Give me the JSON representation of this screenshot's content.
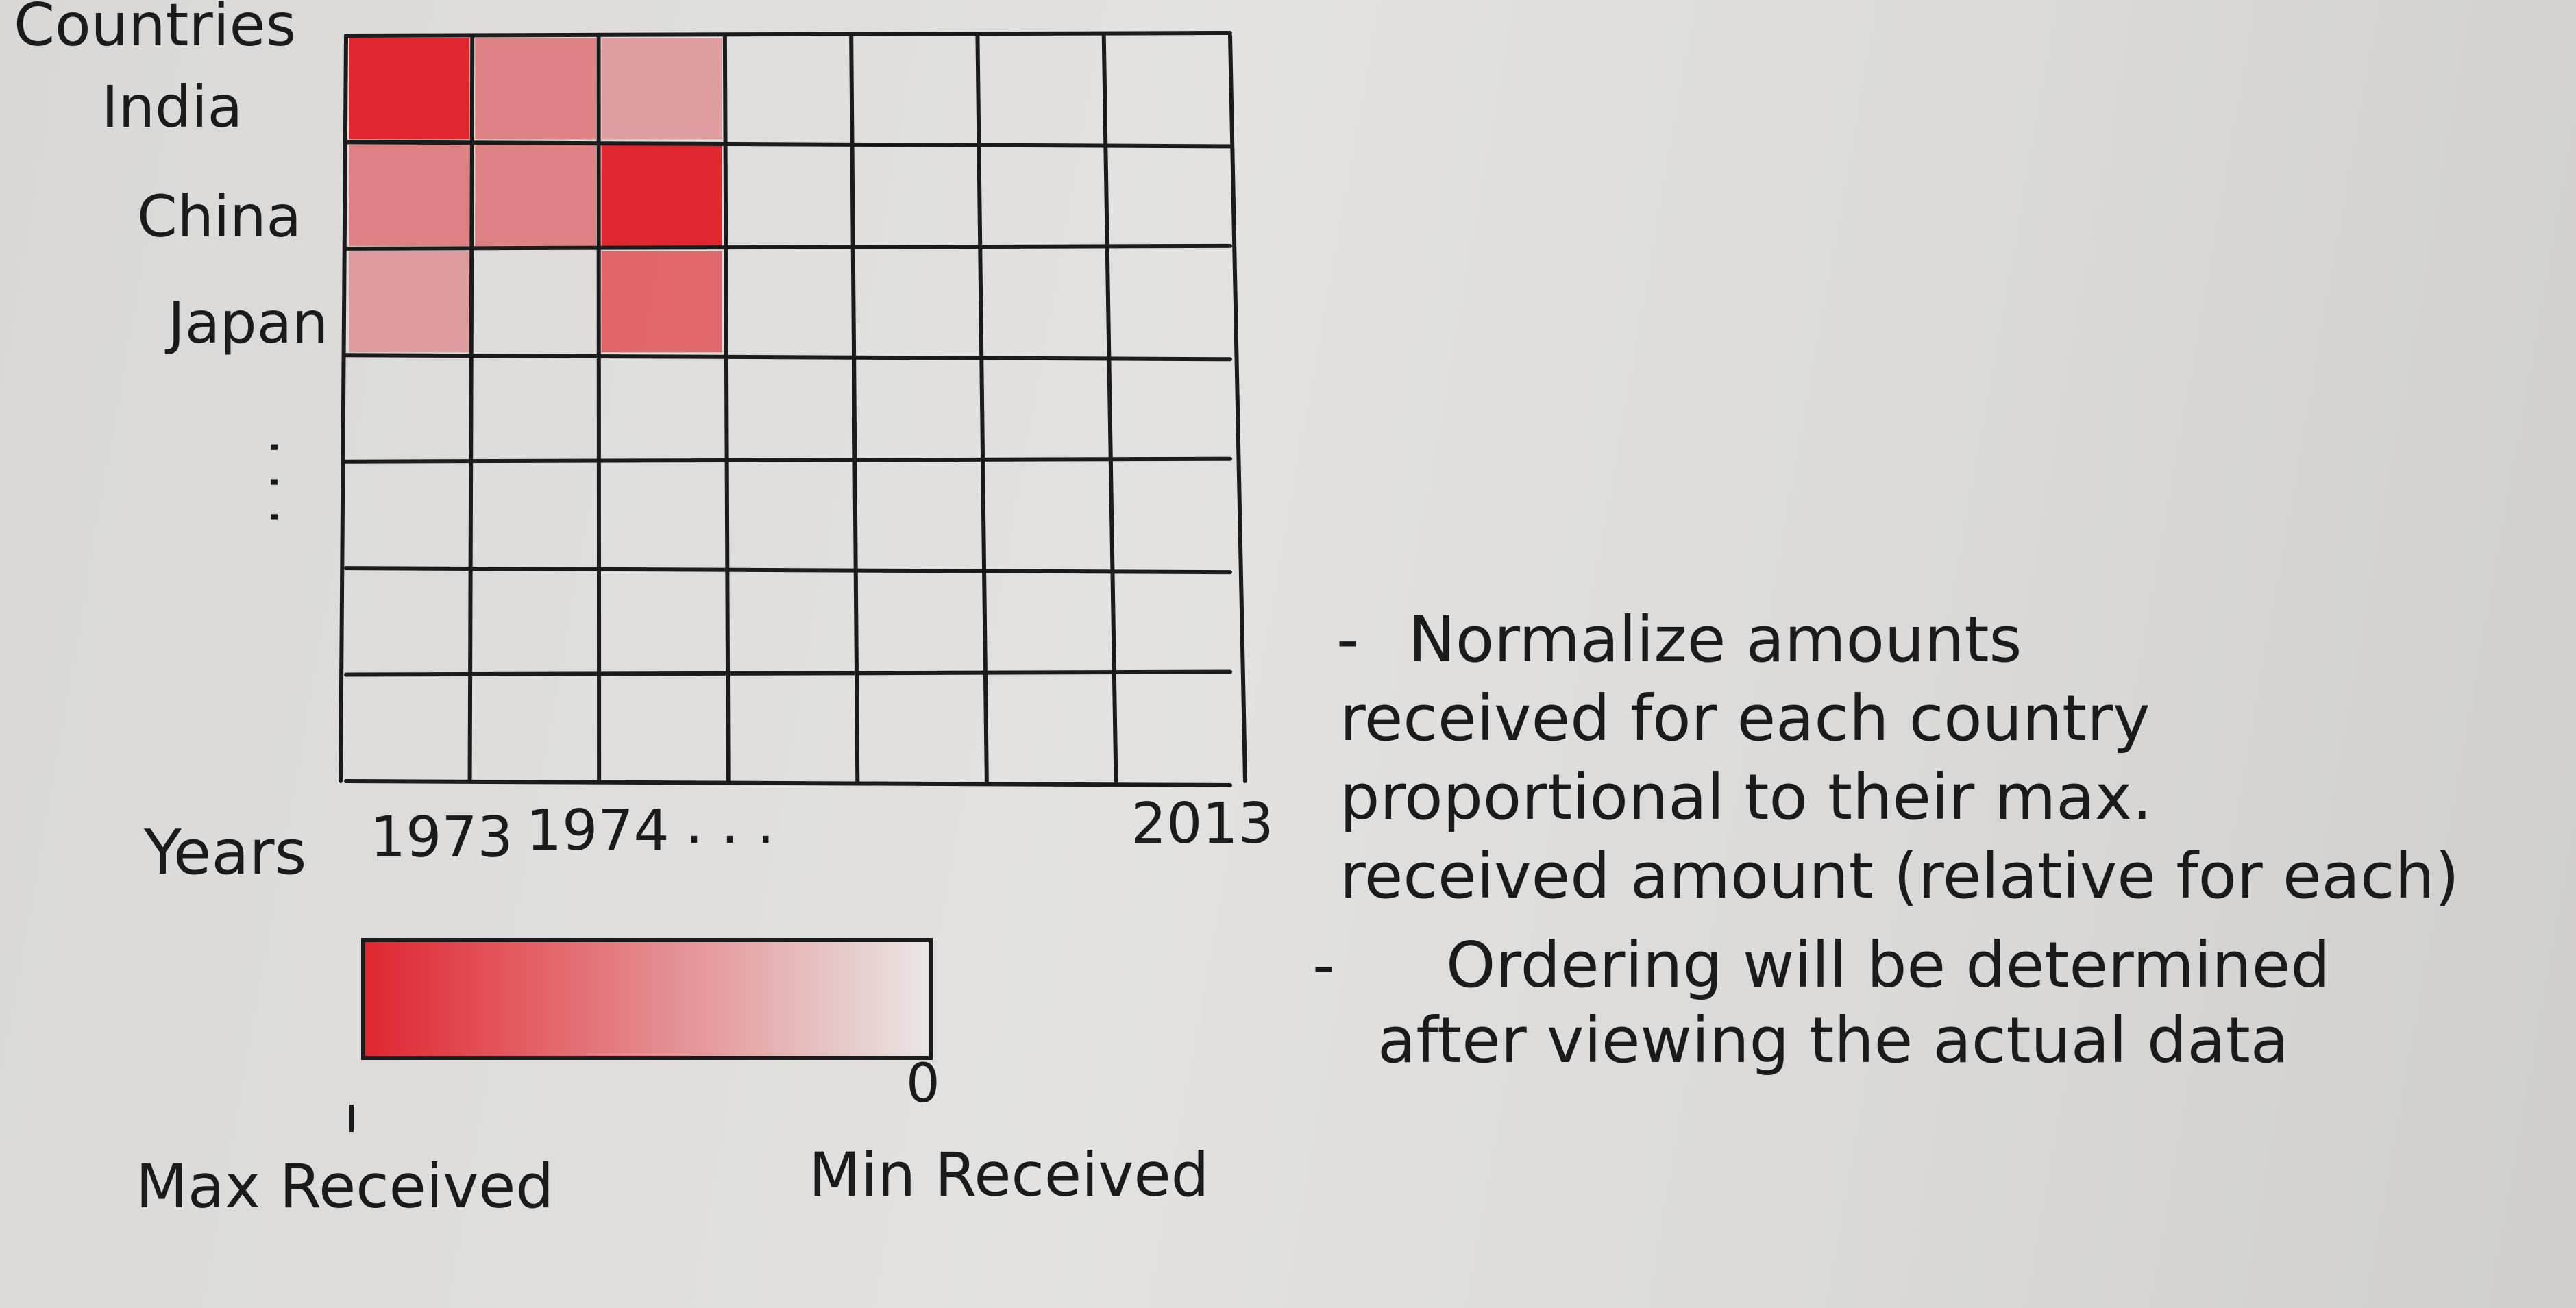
{
  "heatmap": {
    "y_axis_title": "Countries",
    "row_labels": [
      "India",
      "China",
      "Japan"
    ],
    "row_ellipsis": ". . .",
    "x_axis_title": "Years",
    "col_labels": [
      "1973",
      "1974",
      ". . .",
      "2013"
    ],
    "num_rows": 7,
    "num_cols": 7,
    "shaded_cells": [
      {
        "row": 0,
        "col": 0,
        "intensity": 1.0
      },
      {
        "row": 0,
        "col": 1,
        "intensity": 0.5
      },
      {
        "row": 0,
        "col": 2,
        "intensity": 0.35
      },
      {
        "row": 1,
        "col": 0,
        "intensity": 0.5
      },
      {
        "row": 1,
        "col": 1,
        "intensity": 0.5
      },
      {
        "row": 1,
        "col": 2,
        "intensity": 1.0
      },
      {
        "row": 2,
        "col": 0,
        "intensity": 0.35
      },
      {
        "row": 2,
        "col": 2,
        "intensity": 0.65
      }
    ],
    "fill_color": "#e0262f",
    "line_color": "#1b1b1b"
  },
  "legend": {
    "max_tick": "1",
    "min_tick": "0",
    "max_label": "Max Received",
    "min_label": "Min Received",
    "gradient_from": "#e0262f",
    "gradient_to": "#e8e7e5"
  },
  "notes": [
    {
      "bullet": "-",
      "lines": [
        "Normalize amounts",
        "received for each country",
        "proportional to their max.",
        "received amount (relative for each)"
      ]
    },
    {
      "bullet": "-",
      "lines": [
        "Ordering will be determined",
        "after viewing the actual data"
      ]
    }
  ]
}
